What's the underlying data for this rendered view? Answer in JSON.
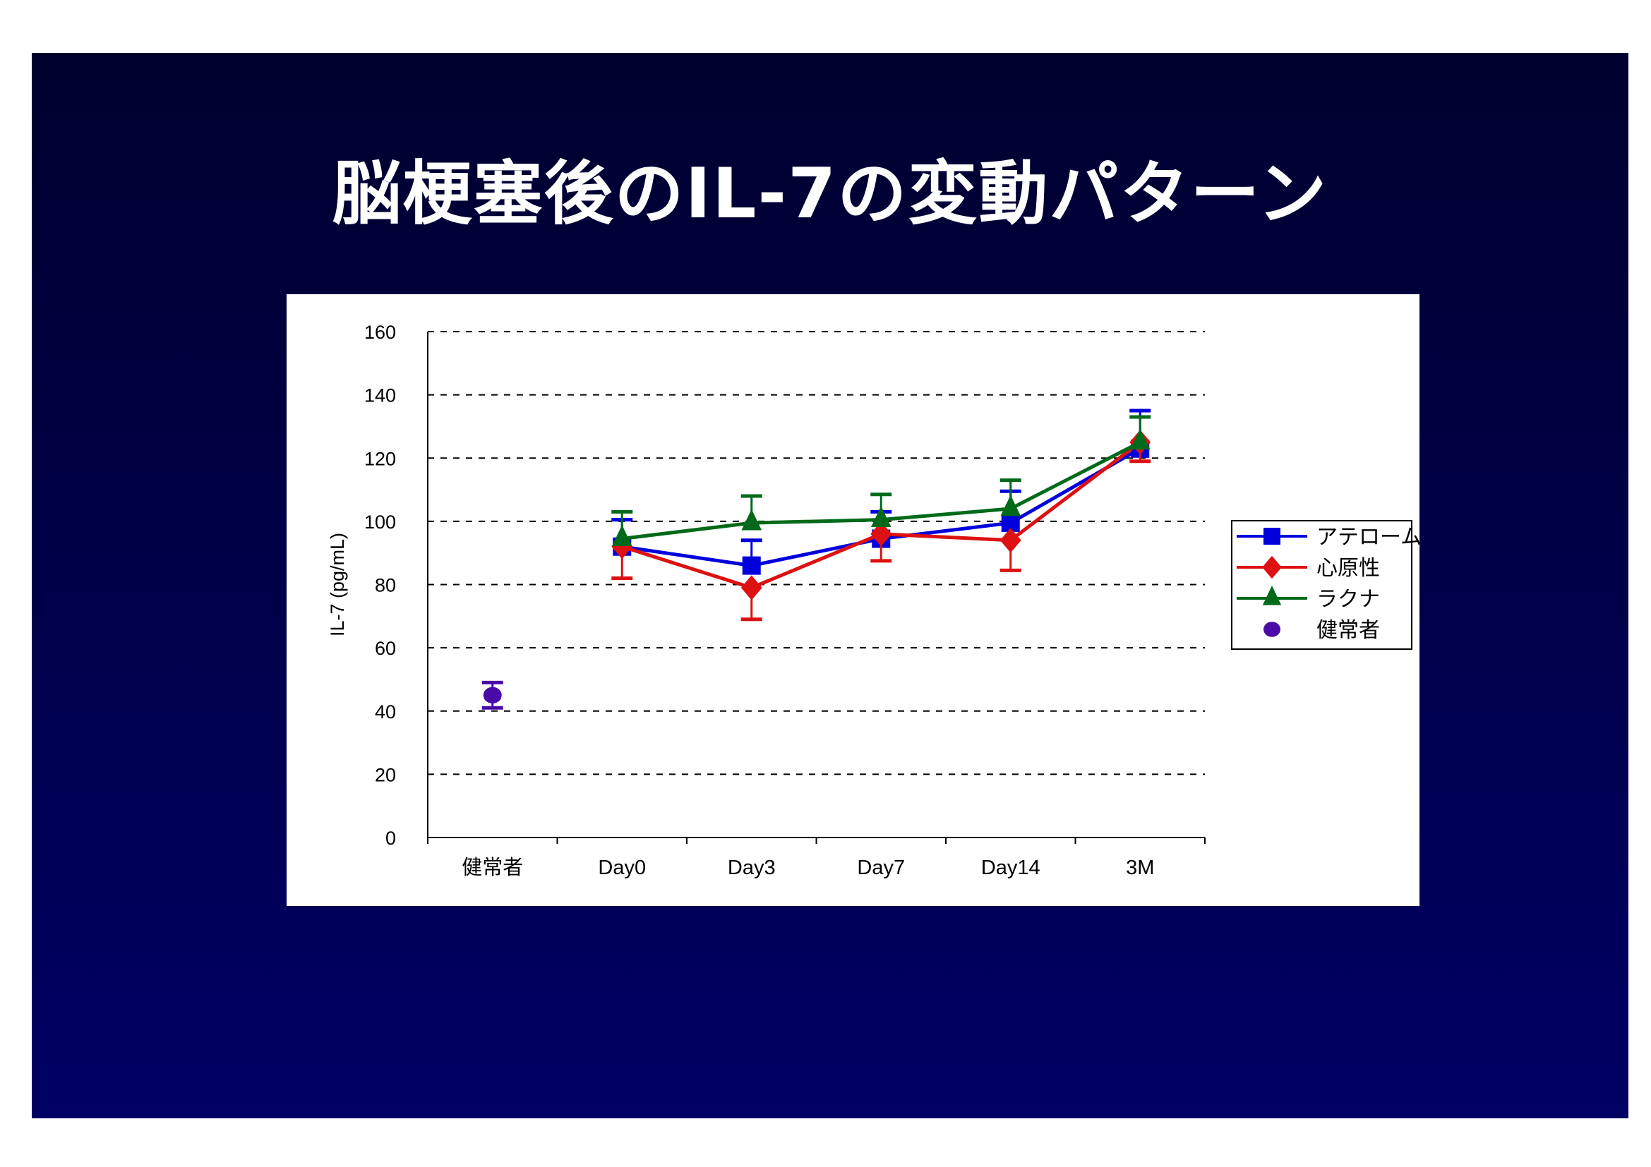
{
  "title": "脳梗塞後のIL-7の変動パターン",
  "chart_data": {
    "type": "line",
    "title": "脳梗塞後のIL-7の変動パターン",
    "xlabel": "",
    "ylabel": "IL-7 (pg/mL)",
    "ylim": [
      0,
      160
    ],
    "yticks": [
      0,
      20,
      40,
      60,
      80,
      100,
      120,
      140,
      160
    ],
    "grid": "horizontal dashed",
    "legend_position": "right",
    "categories": [
      "健常者",
      "Day0",
      "Day3",
      "Day7",
      "Day14",
      "3M"
    ],
    "series": [
      {
        "name": "アテローム",
        "color": "#0000dd",
        "marker": "square",
        "values": [
          null,
          92,
          86,
          94.5,
          99.5,
          123
        ],
        "error": [
          null,
          8.5,
          8,
          8.5,
          10,
          12
        ]
      },
      {
        "name": "心原性",
        "color": "#dd1111",
        "marker": "diamond",
        "values": [
          null,
          92,
          79,
          96,
          94,
          125
        ],
        "error": [
          null,
          10,
          10,
          8.5,
          9.5,
          6
        ]
      },
      {
        "name": "ラクナ",
        "color": "#006a1a",
        "marker": "triangle",
        "values": [
          null,
          94.5,
          99.5,
          100.5,
          104,
          125
        ],
        "error": [
          null,
          8.5,
          8.5,
          8,
          9,
          8
        ]
      },
      {
        "name": "健常者",
        "color": "#4a0aa8",
        "marker": "circle",
        "values": [
          45,
          null,
          null,
          null,
          null,
          null
        ],
        "error": [
          4,
          null,
          null,
          null,
          null,
          null
        ]
      }
    ]
  }
}
